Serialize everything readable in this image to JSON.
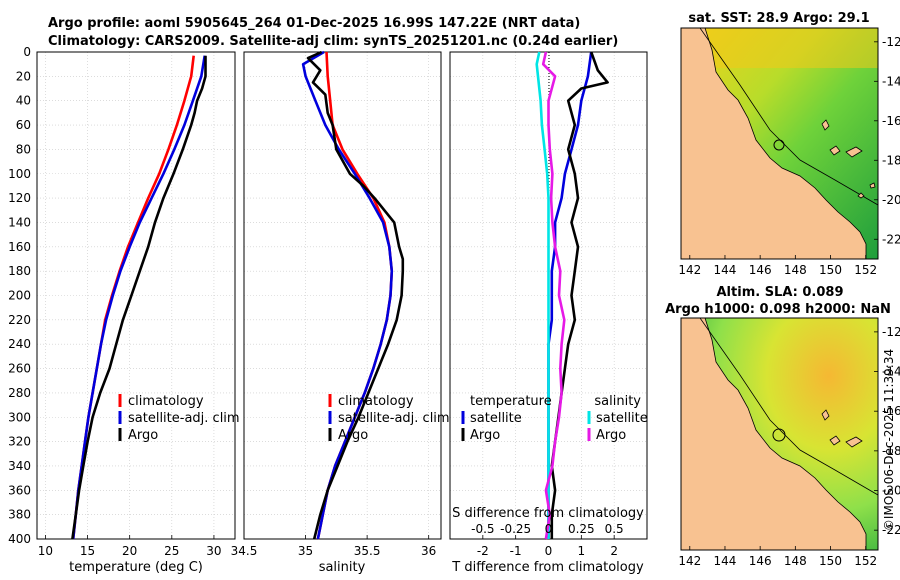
{
  "header": {
    "line1": "Argo profile: aoml 5905645_264 01-Dec-2025 16.99S 147.22E (NRT data)",
    "line2": "Climatology: CARS2009. Satellite-adj clim: synTS_20251201.nc (0.24d earlier)"
  },
  "side_stamp": "©IMOS 06-Dec-2025 11:39:34",
  "colors": {
    "climatology": "#ff0000",
    "satellite": "#0000dd",
    "argo": "#000000",
    "sal_sat": "#00e5e5",
    "sal_argo": "#e619e6",
    "land": "#f8c291"
  },
  "chart_data": [
    {
      "type": "line",
      "title": "Temperature profile",
      "xlabel": "temperature (deg C)",
      "ylabel": "",
      "xlim": [
        9,
        32.5
      ],
      "ylim": [
        0,
        400
      ],
      "xticks": [
        10,
        15,
        20,
        25,
        30
      ],
      "yticks": [
        0,
        20,
        40,
        60,
        80,
        100,
        120,
        140,
        160,
        180,
        200,
        220,
        240,
        260,
        280,
        300,
        320,
        340,
        360,
        380,
        400
      ],
      "legend": [
        "climatology",
        "satellite-adj. clim",
        "Argo"
      ],
      "series": [
        {
          "name": "climatology",
          "color": "red",
          "depth": [
            3,
            20,
            40,
            60,
            80,
            100,
            120,
            140,
            160,
            180,
            200,
            220,
            240,
            260,
            280,
            300,
            320,
            340,
            360,
            380,
            400
          ],
          "values": [
            27.6,
            27.3,
            26.5,
            25.6,
            24.6,
            23.5,
            22.2,
            21.0,
            19.8,
            18.8,
            17.9,
            17.1,
            16.6,
            16.1,
            15.6,
            15.1,
            14.7,
            14.3,
            13.9,
            13.6,
            13.3
          ]
        },
        {
          "name": "satellite-adj. clim",
          "color": "blue",
          "depth": [
            3,
            20,
            40,
            60,
            80,
            100,
            120,
            140,
            160,
            180,
            200,
            220,
            240,
            260,
            280,
            300,
            320,
            340,
            360,
            380,
            400
          ],
          "values": [
            28.9,
            28.5,
            27.5,
            26.5,
            25.3,
            24.0,
            22.6,
            21.2,
            20.0,
            18.9,
            18.0,
            17.2,
            16.6,
            16.1,
            15.6,
            15.1,
            14.7,
            14.3,
            13.9,
            13.6,
            13.3
          ]
        },
        {
          "name": "Argo",
          "color": "black",
          "depth": [
            3,
            20,
            30,
            40,
            50,
            60,
            80,
            100,
            120,
            140,
            160,
            180,
            200,
            220,
            240,
            260,
            280,
            300,
            320,
            340,
            360,
            380,
            400
          ],
          "values": [
            29.0,
            29.0,
            28.6,
            28.0,
            27.7,
            27.3,
            26.3,
            25.2,
            24.0,
            23.0,
            22.2,
            21.2,
            20.2,
            19.2,
            18.4,
            17.6,
            16.5,
            15.6,
            15.0,
            14.5,
            14.0,
            13.6,
            13.2
          ]
        }
      ]
    },
    {
      "type": "line",
      "title": "Salinity profile",
      "xlabel": "salinity",
      "xlim": [
        34.5,
        36.1
      ],
      "ylim": [
        0,
        400
      ],
      "xticks": [
        "34.5",
        "35",
        "35.5",
        "36"
      ],
      "legend": [
        "climatology",
        "satellite-adj. clim",
        "Argo"
      ],
      "series": [
        {
          "name": "climatology",
          "color": "red",
          "depth": [
            0,
            20,
            40,
            60,
            80,
            100,
            120,
            140,
            160,
            180,
            200,
            220,
            240,
            260,
            280,
            300,
            320,
            340,
            360,
            380,
            400
          ],
          "values": [
            35.17,
            35.18,
            35.2,
            35.22,
            35.3,
            35.42,
            35.55,
            35.64,
            35.68,
            35.7,
            35.69,
            35.66,
            35.61,
            35.55,
            35.48,
            35.4,
            35.32,
            35.24,
            35.18,
            35.14,
            35.1
          ]
        },
        {
          "name": "satellite-adj. clim",
          "color": "blue",
          "depth": [
            0,
            10,
            20,
            30,
            40,
            60,
            80,
            100,
            120,
            140,
            160,
            180,
            200,
            220,
            240,
            260,
            280,
            300,
            320,
            340,
            360,
            380,
            400
          ],
          "values": [
            35.15,
            34.98,
            35.0,
            35.04,
            35.08,
            35.16,
            35.27,
            35.4,
            35.52,
            35.63,
            35.68,
            35.7,
            35.69,
            35.66,
            35.61,
            35.55,
            35.48,
            35.4,
            35.32,
            35.24,
            35.18,
            35.14,
            35.1
          ]
        },
        {
          "name": "Argo",
          "color": "black",
          "depth": [
            0,
            5,
            15,
            25,
            35,
            50,
            60,
            80,
            100,
            110,
            120,
            130,
            140,
            160,
            170,
            180,
            200,
            220,
            240,
            260,
            280,
            300,
            320,
            340,
            360,
            380,
            400
          ],
          "values": [
            35.13,
            35.02,
            35.12,
            35.06,
            35.16,
            35.18,
            35.22,
            35.25,
            35.36,
            35.47,
            35.56,
            35.64,
            35.72,
            35.76,
            35.79,
            35.79,
            35.78,
            35.74,
            35.67,
            35.59,
            35.51,
            35.43,
            35.34,
            35.26,
            35.18,
            35.12,
            35.07
          ]
        }
      ]
    },
    {
      "type": "line",
      "title": "Difference from climatology",
      "xlabel": "T difference from climatology",
      "xlabel_top": "S difference from climatology",
      "xlim": [
        -3,
        3
      ],
      "ylim": [
        0,
        400
      ],
      "xticks": [
        -2,
        -1,
        0,
        1,
        2
      ],
      "xticks_top": [
        "-0.5",
        "-0.25",
        "0",
        "0.25",
        "0.5"
      ],
      "legend_temperature": {
        "heading": "temperature",
        "items": [
          "satellite",
          "Argo"
        ]
      },
      "legend_salinity": {
        "heading": "salinity",
        "items": [
          "satellite",
          "Argo"
        ]
      },
      "series": [
        {
          "name": "temperature satellite",
          "color": "blue",
          "depth": [
            0,
            20,
            40,
            60,
            80,
            100,
            120,
            140,
            160,
            180,
            200,
            220,
            240,
            260,
            280,
            300,
            320,
            340,
            360,
            380,
            400
          ],
          "values": [
            1.3,
            1.2,
            1.0,
            0.9,
            0.7,
            0.5,
            0.4,
            0.2,
            0.2,
            0.1,
            0.1,
            0.1,
            0.0,
            0.0,
            0.0,
            0.0,
            0.0,
            0.0,
            0.0,
            0.0,
            0.0
          ]
        },
        {
          "name": "temperature Argo",
          "color": "black",
          "depth": [
            0,
            15,
            25,
            30,
            40,
            60,
            80,
            100,
            120,
            140,
            160,
            180,
            200,
            220,
            240,
            260,
            280,
            300,
            320,
            340,
            360,
            380,
            400
          ],
          "values": [
            1.3,
            1.5,
            1.8,
            1.0,
            0.6,
            0.8,
            0.6,
            0.8,
            0.9,
            0.7,
            0.9,
            0.8,
            0.7,
            0.8,
            0.6,
            0.5,
            0.4,
            0.3,
            0.2,
            0.1,
            0.2,
            0.1,
            0.1
          ]
        },
        {
          "name": "salinity satellite",
          "color": "cyan",
          "depth": [
            0,
            10,
            40,
            60,
            80,
            100,
            120,
            140,
            160,
            180,
            200,
            220,
            240,
            260,
            280,
            300,
            320,
            340,
            360,
            380,
            400
          ],
          "values": [
            -0.07,
            -0.09,
            -0.06,
            -0.05,
            -0.03,
            -0.01,
            0.0,
            0.0,
            0.0,
            0.0,
            0.0,
            0.0,
            0.0,
            0.0,
            0.0,
            0.0,
            0.0,
            0.0,
            0.0,
            0.0,
            0.0
          ]
        },
        {
          "name": "salinity Argo",
          "color": "magenta",
          "depth": [
            0,
            10,
            20,
            40,
            60,
            80,
            100,
            120,
            140,
            160,
            180,
            200,
            220,
            240,
            260,
            280,
            300,
            320,
            340,
            360,
            380,
            400
          ],
          "values": [
            -0.02,
            -0.04,
            0.05,
            0.0,
            0.0,
            0.01,
            0.03,
            0.02,
            0.03,
            0.05,
            0.09,
            0.08,
            0.12,
            0.1,
            0.09,
            0.1,
            0.08,
            0.05,
            0.03,
            -0.02,
            0.01,
            -0.02
          ]
        }
      ]
    },
    {
      "type": "heatmap",
      "title": "sat. SST: 28.9 Argo: 29.1",
      "xlim": [
        141.5,
        152.7
      ],
      "ylim": [
        -23,
        -11.3
      ],
      "xticks": [
        "142",
        "144",
        "146",
        "148",
        "150",
        "152"
      ],
      "yticks": [
        "-12",
        "-14",
        "-16",
        "-18",
        "-20",
        "-22"
      ]
    },
    {
      "type": "heatmap",
      "title_line1": "Altim. SLA: 0.089",
      "title_line2": "Argo h1000: 0.098 h2000: NaN",
      "xlim": [
        141.5,
        152.7
      ],
      "ylim": [
        -23,
        -11.3
      ],
      "xticks": [
        "142",
        "144",
        "146",
        "148",
        "150",
        "152"
      ],
      "yticks": [
        "-12",
        "-14",
        "-16",
        "-18",
        "-20",
        "-22"
      ]
    }
  ]
}
